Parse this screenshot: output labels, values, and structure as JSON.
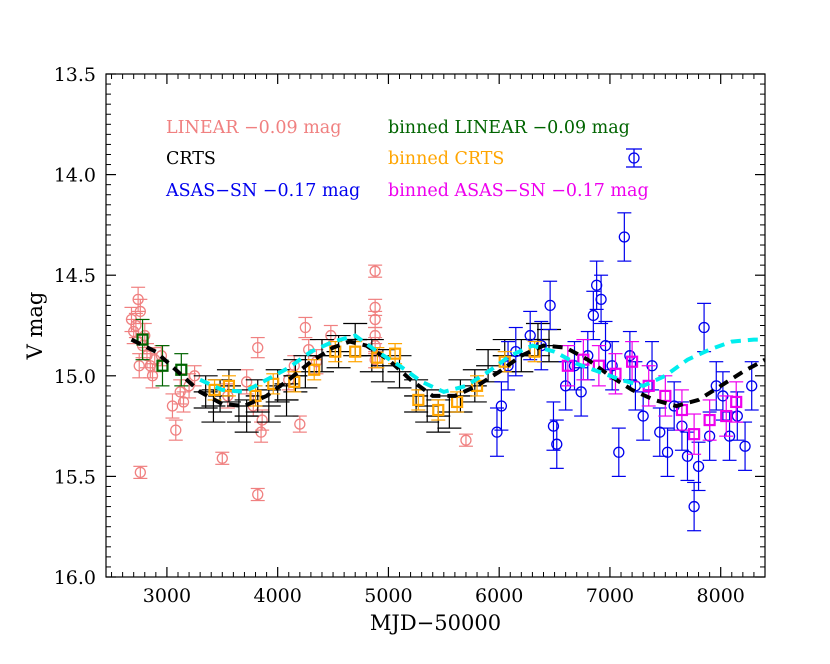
{
  "chart_data": {
    "type": "scatter",
    "title": "",
    "xlabel": "MJD−50000",
    "ylabel": "V mag",
    "xlim": [
      2450,
      8400
    ],
    "ylim": [
      16.0,
      13.5
    ],
    "y_inverted": true,
    "x_ticks": [
      "3000",
      "4000",
      "5000",
      "6000",
      "7000",
      "8000"
    ],
    "y_ticks": [
      "13.5",
      "14.0",
      "14.5",
      "15.0",
      "15.5",
      "16.0"
    ],
    "legend_placement": "top",
    "series": [
      {
        "name": "LINEAR −0.09 mag",
        "color": "#f08080",
        "marker": "circle",
        "points": [
          [
            2680,
            14.72,
            0.06
          ],
          [
            2700,
            14.78,
            0.06
          ],
          [
            2720,
            14.75,
            0.06
          ],
          [
            2740,
            14.62,
            0.06
          ],
          [
            2760,
            14.68,
            0.06
          ],
          [
            2780,
            14.85,
            0.06
          ],
          [
            2800,
            14.8,
            0.06
          ],
          [
            2820,
            14.9,
            0.06
          ],
          [
            2850,
            14.95,
            0.06
          ],
          [
            2870,
            15.0,
            0.06
          ],
          [
            2890,
            14.92,
            0.06
          ],
          [
            2760,
            15.48,
            0.03
          ],
          [
            2750,
            14.95,
            0.06
          ],
          [
            2950,
            14.9,
            0.05
          ],
          [
            3050,
            15.15,
            0.06
          ],
          [
            3080,
            15.27,
            0.05
          ],
          [
            3120,
            15.08,
            0.06
          ],
          [
            3150,
            15.13,
            0.05
          ],
          [
            3200,
            15.05,
            0.06
          ],
          [
            3250,
            15.0,
            0.05
          ],
          [
            3500,
            15.41,
            0.03
          ],
          [
            3550,
            15.1,
            0.06
          ],
          [
            3720,
            15.03,
            0.06
          ],
          [
            3780,
            15.15,
            0.05
          ],
          [
            3820,
            14.86,
            0.05
          ],
          [
            3850,
            15.28,
            0.05
          ],
          [
            3860,
            15.22,
            0.05
          ],
          [
            3820,
            15.59,
            0.03
          ],
          [
            4100,
            15.02,
            0.05
          ],
          [
            4150,
            14.95,
            0.05
          ],
          [
            4200,
            15.24,
            0.04
          ],
          [
            4250,
            14.76,
            0.05
          ],
          [
            4280,
            14.87,
            0.05
          ],
          [
            4350,
            14.93,
            0.06
          ],
          [
            4480,
            14.8,
            0.05
          ],
          [
            4880,
            14.48,
            0.03
          ],
          [
            4880,
            14.66,
            0.04
          ],
          [
            4880,
            14.72,
            0.04
          ],
          [
            4880,
            14.8,
            0.04
          ],
          [
            4880,
            14.85,
            0.04
          ],
          [
            4880,
            14.92,
            0.04
          ],
          [
            5700,
            15.32,
            0.03
          ]
        ]
      },
      {
        "name": "CRTS",
        "color": "#000000",
        "marker": "plus",
        "points": [
          [
            3350,
            15.08,
            0.08
          ],
          [
            3420,
            15.15,
            0.08
          ],
          [
            3480,
            15.1,
            0.08
          ],
          [
            3560,
            15.05,
            0.08
          ],
          [
            3650,
            15.15,
            0.08
          ],
          [
            3720,
            15.2,
            0.08
          ],
          [
            3820,
            15.1,
            0.08
          ],
          [
            3920,
            15.15,
            0.08
          ],
          [
            4000,
            15.05,
            0.08
          ],
          [
            4080,
            15.12,
            0.08
          ],
          [
            4160,
            15.0,
            0.08
          ],
          [
            4250,
            14.98,
            0.08
          ],
          [
            4400,
            14.9,
            0.08
          ],
          [
            4550,
            14.88,
            0.08
          ],
          [
            4700,
            14.82,
            0.08
          ],
          [
            4850,
            14.9,
            0.08
          ],
          [
            4950,
            14.95,
            0.08
          ],
          [
            5100,
            14.98,
            0.08
          ],
          [
            5250,
            15.1,
            0.08
          ],
          [
            5350,
            15.15,
            0.08
          ],
          [
            5450,
            15.2,
            0.08
          ],
          [
            5550,
            15.18,
            0.08
          ],
          [
            5650,
            15.1,
            0.08
          ],
          [
            5780,
            15.05,
            0.08
          ],
          [
            5900,
            14.95,
            0.08
          ],
          [
            6050,
            14.9,
            0.08
          ],
          [
            6200,
            14.9,
            0.08
          ],
          [
            6350,
            14.82,
            0.08
          ],
          [
            6450,
            14.85,
            0.08
          ]
        ]
      },
      {
        "name": "ASAS−SN −0.17 mag",
        "color": "#0000ee",
        "marker": "circle",
        "points": [
          [
            5980,
            15.28,
            0.12
          ],
          [
            6020,
            15.15,
            0.12
          ],
          [
            6080,
            14.95,
            0.12
          ],
          [
            6150,
            14.88,
            0.12
          ],
          [
            6280,
            14.8,
            0.12
          ],
          [
            6380,
            14.85,
            0.12
          ],
          [
            6460,
            14.65,
            0.12
          ],
          [
            6490,
            15.25,
            0.12
          ],
          [
            6520,
            15.34,
            0.12
          ],
          [
            6600,
            15.05,
            0.12
          ],
          [
            6680,
            14.95,
            0.12
          ],
          [
            6740,
            15.08,
            0.12
          ],
          [
            6800,
            14.9,
            0.12
          ],
          [
            6850,
            14.7,
            0.12
          ],
          [
            6880,
            14.55,
            0.12
          ],
          [
            6920,
            14.62,
            0.12
          ],
          [
            6960,
            14.85,
            0.12
          ],
          [
            7020,
            14.95,
            0.12
          ],
          [
            7080,
            15.38,
            0.12
          ],
          [
            7130,
            14.31,
            0.12
          ],
          [
            7180,
            14.9,
            0.12
          ],
          [
            7230,
            15.05,
            0.12
          ],
          [
            7300,
            15.2,
            0.12
          ],
          [
            7380,
            14.95,
            0.12
          ],
          [
            7450,
            15.28,
            0.12
          ],
          [
            7520,
            15.38,
            0.12
          ],
          [
            7580,
            15.15,
            0.12
          ],
          [
            7650,
            15.25,
            0.12
          ],
          [
            7700,
            15.4,
            0.12
          ],
          [
            7760,
            15.65,
            0.12
          ],
          [
            7800,
            15.45,
            0.12
          ],
          [
            7850,
            14.76,
            0.12
          ],
          [
            7900,
            15.3,
            0.12
          ],
          [
            7960,
            15.05,
            0.12
          ],
          [
            8020,
            15.1,
            0.12
          ],
          [
            8080,
            15.3,
            0.12
          ],
          [
            8150,
            15.2,
            0.12
          ],
          [
            8220,
            15.35,
            0.12
          ],
          [
            8280,
            15.05,
            0.12
          ]
        ]
      },
      {
        "name": "binned LINEAR −0.09 mag",
        "color": "#006400",
        "marker": "square",
        "points": [
          [
            2780,
            14.82,
            0.1
          ],
          [
            2960,
            14.95,
            0.1
          ],
          [
            3130,
            14.97,
            0.08
          ]
        ]
      },
      {
        "name": "binned CRTS",
        "color": "#ffa500",
        "marker": "square",
        "points": [
          [
            3430,
            15.07,
            0.05
          ],
          [
            3560,
            15.05,
            0.05
          ],
          [
            3800,
            15.1,
            0.05
          ],
          [
            3960,
            15.04,
            0.05
          ],
          [
            4150,
            15.03,
            0.05
          ],
          [
            4330,
            14.97,
            0.05
          ],
          [
            4520,
            14.88,
            0.05
          ],
          [
            4700,
            14.88,
            0.05
          ],
          [
            4900,
            14.91,
            0.05
          ],
          [
            5060,
            14.89,
            0.05
          ],
          [
            5270,
            15.12,
            0.05
          ],
          [
            5450,
            15.17,
            0.05
          ],
          [
            5620,
            15.13,
            0.05
          ],
          [
            5800,
            15.05,
            0.05
          ],
          [
            6050,
            14.93,
            0.05
          ],
          [
            6320,
            14.88,
            0.05
          ]
        ]
      },
      {
        "name": "binned ASAS−SN −0.17 mag",
        "color": "#ee00ee",
        "marker": "square",
        "points": [
          [
            6620,
            14.95,
            0.1
          ],
          [
            6760,
            14.92,
            0.1
          ],
          [
            6900,
            14.95,
            0.1
          ],
          [
            7050,
            14.99,
            0.1
          ],
          [
            7200,
            14.93,
            0.1
          ],
          [
            7350,
            15.05,
            0.1
          ],
          [
            7500,
            15.1,
            0.1
          ],
          [
            7650,
            15.17,
            0.1
          ],
          [
            7760,
            15.29,
            0.1
          ],
          [
            7900,
            15.22,
            0.1
          ],
          [
            8050,
            15.2,
            0.1
          ],
          [
            8140,
            15.13,
            0.1
          ]
        ]
      }
    ],
    "model_lines": [
      {
        "color": "#000000",
        "style": "dashed",
        "points": [
          [
            2680,
            14.82
          ],
          [
            2900,
            14.88
          ],
          [
            3100,
            14.98
          ],
          [
            3300,
            15.08
          ],
          [
            3500,
            15.14
          ],
          [
            3700,
            15.15
          ],
          [
            3900,
            15.1
          ],
          [
            4100,
            15.02
          ],
          [
            4300,
            14.93
          ],
          [
            4500,
            14.86
          ],
          [
            4650,
            14.83
          ],
          [
            4800,
            14.85
          ],
          [
            5000,
            14.92
          ],
          [
            5200,
            15.02
          ],
          [
            5400,
            15.1
          ],
          [
            5600,
            15.1
          ],
          [
            5800,
            15.05
          ],
          [
            6000,
            14.98
          ],
          [
            6200,
            14.9
          ],
          [
            6400,
            14.85
          ],
          [
            6600,
            14.86
          ],
          [
            6800,
            14.92
          ],
          [
            7000,
            15.0
          ],
          [
            7200,
            15.07
          ],
          [
            7400,
            15.12
          ],
          [
            7600,
            15.15
          ],
          [
            7800,
            15.12
          ],
          [
            8000,
            15.05
          ],
          [
            8200,
            14.98
          ],
          [
            8400,
            14.92
          ]
        ]
      },
      {
        "color": "#00eeee",
        "style": "dashed",
        "points": [
          [
            3300,
            15.02
          ],
          [
            3500,
            15.07
          ],
          [
            3700,
            15.08
          ],
          [
            3900,
            15.02
          ],
          [
            4100,
            14.96
          ],
          [
            4300,
            14.88
          ],
          [
            4500,
            14.83
          ],
          [
            4700,
            14.8
          ],
          [
            4900,
            14.88
          ],
          [
            5100,
            14.95
          ],
          [
            5300,
            15.03
          ],
          [
            5500,
            15.08
          ],
          [
            5700,
            15.05
          ],
          [
            5900,
            14.98
          ],
          [
            6100,
            14.9
          ],
          [
            6300,
            14.85
          ],
          [
            6500,
            14.88
          ],
          [
            6700,
            14.94
          ],
          [
            6900,
            14.98
          ],
          [
            7100,
            15.02
          ],
          [
            7300,
            15.05
          ],
          [
            7500,
            15.0
          ],
          [
            7700,
            14.92
          ],
          [
            7900,
            14.87
          ],
          [
            8100,
            14.83
          ],
          [
            8300,
            14.82
          ],
          [
            8400,
            14.82
          ]
        ]
      }
    ]
  }
}
